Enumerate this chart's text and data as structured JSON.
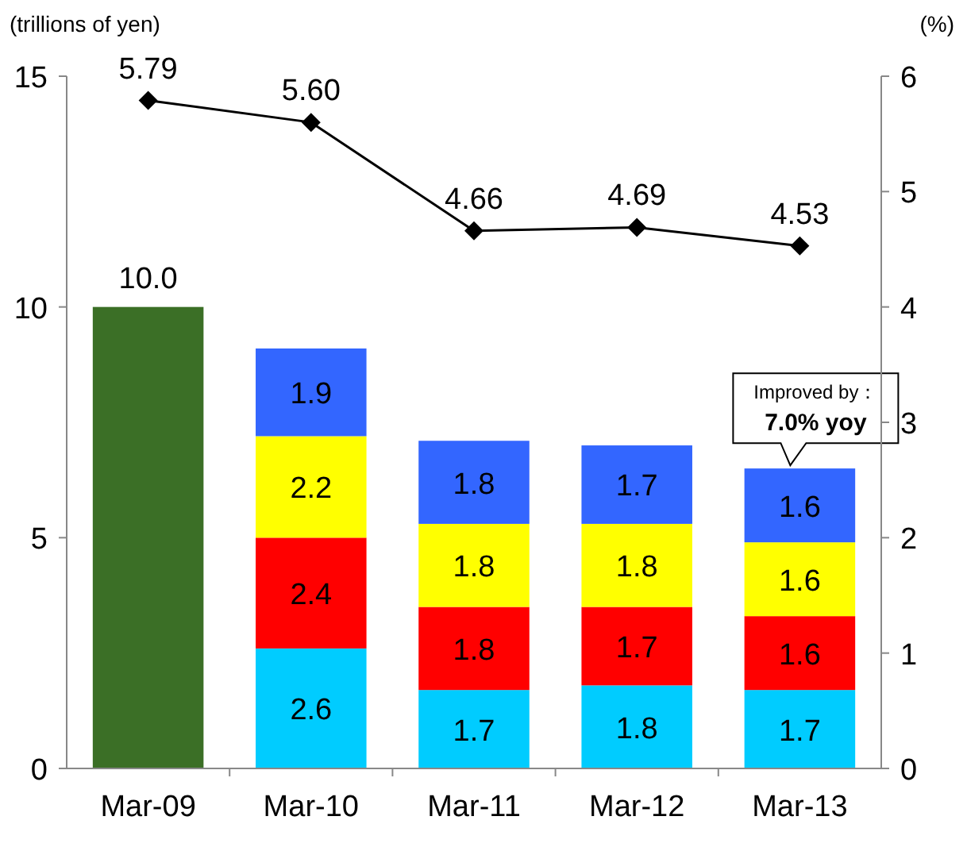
{
  "chart_data": {
    "type": "bar",
    "stacked": true,
    "ylabel": "(trillions of yen)",
    "y2label": "(%)",
    "categories": [
      "Mar-09",
      "Mar-10",
      "Mar-11",
      "Mar-12",
      "Mar-13"
    ],
    "series": [
      {
        "color": "#3b6f26",
        "values": [
          10.0,
          null,
          null,
          null,
          null
        ],
        "value_labels": [
          "10.0",
          null,
          null,
          null,
          null
        ]
      },
      {
        "color": "#00ccff",
        "values": [
          null,
          2.6,
          1.7,
          1.8,
          1.7
        ],
        "value_labels": [
          null,
          "2.6",
          "1.7",
          "1.8",
          "1.7"
        ]
      },
      {
        "color": "#ff0000",
        "values": [
          null,
          2.4,
          1.8,
          1.7,
          1.6
        ],
        "value_labels": [
          null,
          "2.4",
          "1.8",
          "1.7",
          "1.6"
        ]
      },
      {
        "color": "#ffff00",
        "values": [
          null,
          2.2,
          1.8,
          1.8,
          1.6
        ],
        "value_labels": [
          null,
          "2.2",
          "1.8",
          "1.8",
          "1.6"
        ]
      },
      {
        "color": "#3366ff",
        "values": [
          null,
          1.9,
          1.8,
          1.7,
          1.6
        ],
        "value_labels": [
          null,
          "1.9",
          "1.8",
          "1.7",
          "1.6"
        ]
      },
      {
        "type": "line",
        "axis": "y2",
        "color": "#000000",
        "marker": "diamond",
        "values": [
          5.79,
          5.6,
          4.66,
          4.69,
          4.53
        ],
        "value_labels": [
          "5.79",
          "5.60",
          "4.66",
          "4.69",
          "4.53"
        ]
      }
    ],
    "ylim": [
      0,
      15
    ],
    "yticks": [
      0,
      5,
      10,
      15
    ],
    "y2lim": [
      0,
      6
    ],
    "y2ticks": [
      0,
      1,
      2,
      3,
      4,
      5,
      6
    ],
    "annotations": [
      "Improved by：",
      "7.0% yoy"
    ]
  }
}
